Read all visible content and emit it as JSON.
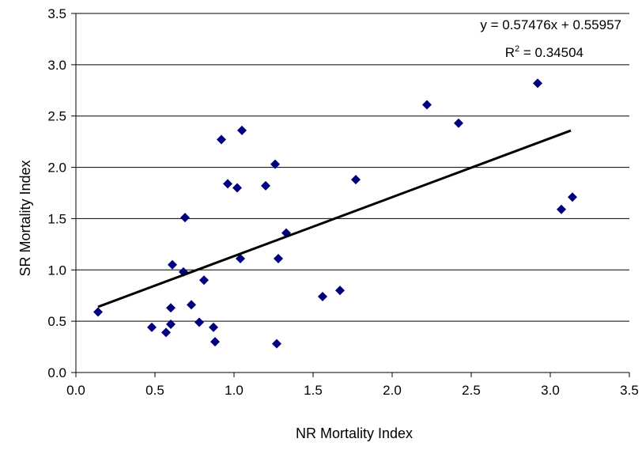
{
  "chart_data": {
    "type": "scatter",
    "title": "",
    "xlabel": "NR Mortality Index",
    "ylabel": "SR Mortality Index",
    "xlim": [
      0.0,
      3.5
    ],
    "ylim": [
      0.0,
      3.5
    ],
    "xticks": [
      "0.0",
      "0.5",
      "1.0",
      "1.5",
      "2.0",
      "2.5",
      "3.0",
      "3.5"
    ],
    "yticks": [
      "0.0",
      "0.5",
      "1.0",
      "1.5",
      "2.0",
      "2.5",
      "3.0",
      "3.5"
    ],
    "grid": "horizontal",
    "marker": "diamond",
    "marker_color": "#00007f",
    "trendline": {
      "equation": "y = 0.57476x + 0.55957",
      "r_squared": "R² = 0.34504",
      "r_squared_prefix": "R",
      "r_squared_sup": "2",
      "r_squared_value": " = 0.34504",
      "slope": 0.57476,
      "intercept": 0.55957,
      "x_range": [
        0.14,
        3.13
      ],
      "color": "#000000"
    },
    "points": [
      {
        "x": 0.14,
        "y": 0.59
      },
      {
        "x": 0.48,
        "y": 0.44
      },
      {
        "x": 0.57,
        "y": 0.39
      },
      {
        "x": 0.6,
        "y": 0.47
      },
      {
        "x": 0.6,
        "y": 0.63
      },
      {
        "x": 0.61,
        "y": 1.05
      },
      {
        "x": 0.68,
        "y": 0.98
      },
      {
        "x": 0.69,
        "y": 1.51
      },
      {
        "x": 0.73,
        "y": 0.66
      },
      {
        "x": 0.78,
        "y": 0.49
      },
      {
        "x": 0.81,
        "y": 0.9
      },
      {
        "x": 0.87,
        "y": 0.44
      },
      {
        "x": 0.88,
        "y": 0.3
      },
      {
        "x": 0.92,
        "y": 2.27
      },
      {
        "x": 0.96,
        "y": 1.84
      },
      {
        "x": 1.02,
        "y": 1.8
      },
      {
        "x": 1.04,
        "y": 1.11
      },
      {
        "x": 1.05,
        "y": 2.36
      },
      {
        "x": 1.2,
        "y": 1.82
      },
      {
        "x": 1.26,
        "y": 2.03
      },
      {
        "x": 1.27,
        "y": 0.28
      },
      {
        "x": 1.28,
        "y": 1.11
      },
      {
        "x": 1.33,
        "y": 1.36
      },
      {
        "x": 1.56,
        "y": 0.74
      },
      {
        "x": 1.67,
        "y": 0.8
      },
      {
        "x": 1.77,
        "y": 1.88
      },
      {
        "x": 2.22,
        "y": 2.61
      },
      {
        "x": 2.42,
        "y": 2.43
      },
      {
        "x": 2.92,
        "y": 2.82
      },
      {
        "x": 3.07,
        "y": 1.59
      },
      {
        "x": 3.14,
        "y": 1.71
      }
    ]
  }
}
